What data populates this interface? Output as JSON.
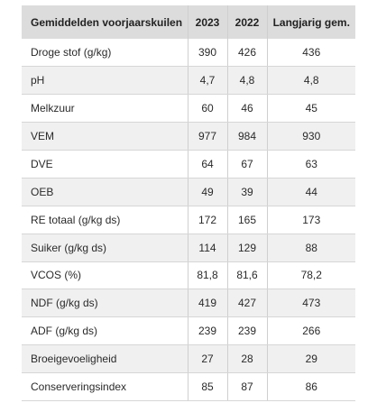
{
  "table": {
    "headers": [
      "Gemiddelden voorjaarskuilen",
      "2023",
      "2022",
      "Langjarig gem."
    ],
    "rows": [
      [
        "Droge stof (g/kg)",
        "390",
        "426",
        "436"
      ],
      [
        "pH",
        "4,7",
        "4,8",
        "4,8"
      ],
      [
        "Melkzuur",
        "60",
        "46",
        "45"
      ],
      [
        "VEM",
        "977",
        "984",
        "930"
      ],
      [
        "DVE",
        "64",
        "67",
        "63"
      ],
      [
        "OEB",
        "49",
        "39",
        "44"
      ],
      [
        "RE totaal (g/kg ds)",
        "172",
        "165",
        "173"
      ],
      [
        "Suiker (g/kg ds)",
        "114",
        "129",
        "88"
      ],
      [
        "VCOS (%)",
        "81,8",
        "81,6",
        "78,2"
      ],
      [
        "NDF (g/kg ds)",
        "419",
        "427",
        "473"
      ],
      [
        "ADF (g/kg ds)",
        "239",
        "239",
        "266"
      ],
      [
        "Broeigevoeligheid",
        "27",
        "28",
        "29"
      ],
      [
        "Conserveringsindex",
        "85",
        "87",
        "86"
      ]
    ]
  }
}
